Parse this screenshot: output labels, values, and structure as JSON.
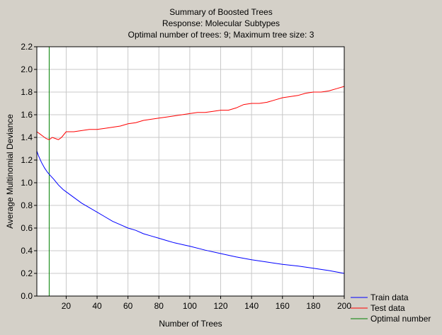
{
  "chart_data": {
    "type": "line",
    "title": "Summary of Boosted Trees",
    "subtitle_1": "Response: Molecular  Subtypes",
    "subtitle_2": "Optimal number of trees: 9; Maximum tree size: 3",
    "xlabel": "Number of Trees",
    "ylabel": "Average Multinomial Deviance",
    "xlim": [
      1,
      200
    ],
    "ylim": [
      0.0,
      2.2
    ],
    "xticks": [
      20,
      40,
      60,
      80,
      100,
      120,
      140,
      160,
      180,
      200
    ],
    "yticks": [
      0.0,
      0.2,
      0.4,
      0.6,
      0.8,
      1.0,
      1.2,
      1.4,
      1.6,
      1.8,
      2.0,
      2.2
    ],
    "grid": true,
    "legend_position": "bottom-right",
    "optimal_x": 9,
    "series": [
      {
        "name": "Train data",
        "color": "#0000ff",
        "x": [
          1,
          2,
          4,
          6,
          8,
          10,
          12,
          15,
          18,
          20,
          25,
          30,
          35,
          40,
          45,
          50,
          55,
          60,
          65,
          70,
          75,
          80,
          85,
          90,
          95,
          100,
          110,
          120,
          130,
          140,
          150,
          160,
          170,
          180,
          190,
          200
        ],
        "values": [
          1.28,
          1.24,
          1.18,
          1.13,
          1.09,
          1.06,
          1.03,
          0.98,
          0.94,
          0.92,
          0.87,
          0.82,
          0.78,
          0.74,
          0.7,
          0.66,
          0.63,
          0.6,
          0.58,
          0.55,
          0.53,
          0.51,
          0.49,
          0.47,
          0.455,
          0.44,
          0.405,
          0.375,
          0.345,
          0.32,
          0.3,
          0.28,
          0.265,
          0.245,
          0.225,
          0.2
        ]
      },
      {
        "name": "Test data",
        "color": "#ff0000",
        "x": [
          1,
          3,
          5,
          7,
          9,
          11,
          13,
          15,
          17,
          20,
          25,
          30,
          35,
          40,
          45,
          50,
          55,
          60,
          65,
          70,
          75,
          80,
          85,
          90,
          95,
          100,
          105,
          110,
          115,
          120,
          125,
          130,
          135,
          140,
          145,
          150,
          155,
          160,
          165,
          170,
          175,
          180,
          185,
          190,
          195,
          200
        ],
        "values": [
          1.45,
          1.43,
          1.41,
          1.39,
          1.38,
          1.4,
          1.39,
          1.38,
          1.4,
          1.45,
          1.45,
          1.46,
          1.47,
          1.47,
          1.48,
          1.49,
          1.5,
          1.52,
          1.53,
          1.55,
          1.56,
          1.57,
          1.58,
          1.59,
          1.6,
          1.61,
          1.62,
          1.62,
          1.63,
          1.64,
          1.64,
          1.66,
          1.69,
          1.7,
          1.7,
          1.71,
          1.73,
          1.75,
          1.76,
          1.77,
          1.79,
          1.8,
          1.8,
          1.81,
          1.83,
          1.85
        ]
      },
      {
        "name": "Optimal number",
        "color": "#008000"
      }
    ]
  }
}
